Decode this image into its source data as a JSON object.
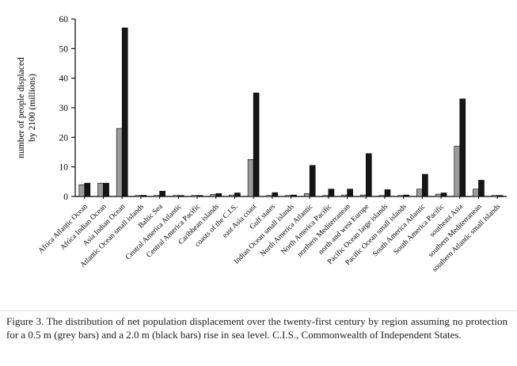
{
  "chart_data": {
    "type": "bar",
    "title": "",
    "ylabel": "number of people displaced by 2100 (millions)",
    "ylabel_lines": [
      "number of people displaced",
      "by 2100 (millions)"
    ],
    "ylim": [
      0,
      60
    ],
    "yticks": [
      0,
      10,
      20,
      30,
      40,
      50,
      60
    ],
    "grid": false,
    "legend_position": "none",
    "bar_outline": true,
    "categories": [
      "Africa Atlantic Ocean",
      "Africa Indian Ocean",
      "Asia Indian Ocean",
      "Atlantic Ocean small islands",
      "Baltic Sea",
      "Central America Atlantic",
      "Central America Pacific",
      "Caribbean islands",
      "coasts of the C.I.S.",
      "east Asia coast",
      "Gulf states",
      "Indian Ocean small islands",
      "North America Atlantic",
      "North America Pacific",
      "northern Mediterranean",
      "north and west Europe",
      "Pacific Ocean large islands",
      "Pacific Ocean small islands",
      "South America Atlantic",
      "South America Pacific",
      "southeast Asia",
      "southern Mediterranean",
      "southern Atlantic small islands"
    ],
    "series": [
      {
        "name": "0.5 m sea-level rise (grey bars)",
        "color": "#9b9b9b",
        "values": [
          4,
          4.5,
          23,
          0.2,
          0.2,
          0.1,
          0.1,
          0.7,
          0.5,
          12.5,
          0.3,
          0.2,
          1.0,
          0.3,
          0.5,
          0.5,
          0.3,
          0.2,
          2.5,
          0.8,
          17,
          2.5,
          0.1
        ]
      },
      {
        "name": "2.0 m sea-level rise (black bars)",
        "color": "#161616",
        "values": [
          4.5,
          4.5,
          57,
          0.4,
          1.8,
          0.3,
          0.2,
          1.0,
          1.2,
          35,
          1.3,
          0.5,
          10.5,
          2.5,
          2.5,
          14.5,
          2.3,
          0.5,
          7.5,
          1.2,
          33,
          5.5,
          0.2
        ]
      }
    ]
  },
  "caption": "Figure 3. The distribution of net population displacement over the twenty-first century by region assuming no protection for a 0.5 m (grey bars) and a 2.0 m (black bars) rise in sea level. C.I.S., Commonwealth of Independent States."
}
